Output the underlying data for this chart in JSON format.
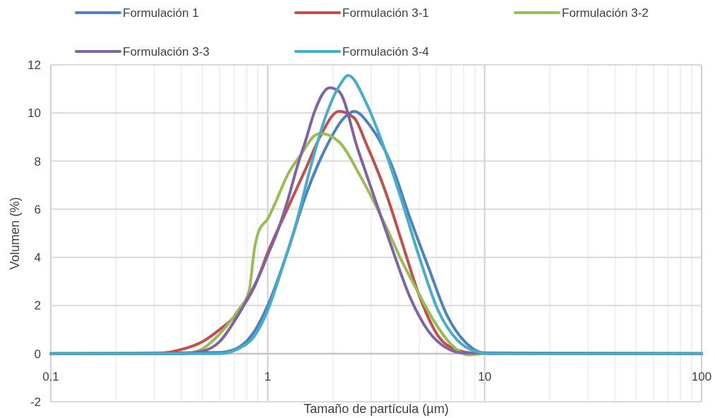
{
  "chart_data": {
    "type": "line",
    "xlabel": "Tamaño de partícula (µm)",
    "ylabel": "Volumen (%)",
    "log": "x",
    "xlim": [
      0.1,
      100
    ],
    "ylim": [
      -2,
      12
    ],
    "xticks": [
      0.1,
      {
        "value": 0.2,
        "label": null
      },
      {
        "value": 0.3,
        "label": null
      },
      {
        "value": 0.4,
        "label": null
      },
      {
        "value": 0.5,
        "label": null
      },
      {
        "value": 0.6,
        "label": null
      },
      {
        "value": 0.7,
        "label": null
      },
      {
        "value": 0.8,
        "label": null
      },
      {
        "value": 0.9,
        "label": null
      },
      1,
      {
        "value": 2,
        "label": null
      },
      {
        "value": 3,
        "label": null
      },
      {
        "value": 4,
        "label": null
      },
      {
        "value": 5,
        "label": null
      },
      {
        "value": 6,
        "label": null
      },
      {
        "value": 7,
        "label": null
      },
      {
        "value": 8,
        "label": null
      },
      {
        "value": 9,
        "label": null
      },
      10,
      {
        "value": 20,
        "label": null
      },
      {
        "value": 30,
        "label": null
      },
      {
        "value": 40,
        "label": null
      },
      {
        "value": 50,
        "label": null
      },
      {
        "value": 60,
        "label": null
      },
      {
        "value": 70,
        "label": null
      },
      {
        "value": 80,
        "label": null
      },
      {
        "value": 90,
        "label": null
      },
      100
    ],
    "yticks": [
      -2,
      0,
      2,
      4,
      6,
      8,
      10,
      12
    ],
    "grid": true,
    "legend": "top",
    "marker": "none",
    "line_style": "solid",
    "series": [
      {
        "name": "Formulación 1",
        "color": "#4f81bd",
        "x": [
          0.1,
          0.6,
          0.73,
          0.87,
          1,
          1.23,
          1.5,
          1.84,
          2.25,
          2.5,
          3.0,
          3.7,
          4.5,
          5.5,
          6.7,
          8.2,
          10,
          100
        ],
        "values": [
          0,
          0.05,
          0.25,
          0.94,
          2.0,
          4.2,
          6.6,
          8.5,
          9.8,
          10.07,
          9.4,
          7.9,
          5.7,
          3.6,
          1.6,
          0.45,
          0.03,
          0
        ]
      },
      {
        "name": "Formulación 3-1",
        "color": "#c0504d",
        "x": [
          0.1,
          0.3,
          0.39,
          0.5,
          0.6,
          0.73,
          0.87,
          1,
          1.23,
          1.5,
          1.74,
          2.13,
          2.5,
          2.85,
          3.5,
          4.2,
          5,
          6.1,
          7.5,
          9,
          100
        ],
        "values": [
          0,
          0,
          0.15,
          0.5,
          1.0,
          1.7,
          2.8,
          4.2,
          6.0,
          7.7,
          9.0,
          10.07,
          9.8,
          8.7,
          6.7,
          4.5,
          2.4,
          0.74,
          0.15,
          0.02,
          0
        ]
      },
      {
        "name": "Formulación 3-2",
        "color": "#9bbb59",
        "x": [
          0.1,
          0.4,
          0.45,
          0.5,
          0.56,
          0.64,
          0.73,
          0.82,
          0.87,
          0.91,
          1,
          1.1,
          1.23,
          1.43,
          1.65,
          1.75,
          2.13,
          2.7,
          3.5,
          4.1,
          4.9,
          5.8,
          6.9,
          8.4,
          10,
          100
        ],
        "values": [
          0,
          0,
          0.05,
          0.2,
          0.55,
          1.1,
          1.8,
          2.6,
          4.4,
          5.1,
          5.6,
          6.4,
          7.4,
          8.3,
          9.07,
          9.15,
          8.8,
          7.3,
          5.3,
          3.95,
          2.6,
          1.4,
          0.45,
          -0.05,
          0,
          0
        ]
      },
      {
        "name": "Formulación 3-3",
        "color": "#8064a2",
        "x": [
          0.1,
          0.4,
          0.5,
          0.6,
          0.73,
          0.82,
          0.93,
          1,
          1.1,
          1.23,
          1.36,
          1.5,
          1.65,
          1.93,
          2.13,
          2.6,
          3.1,
          3.7,
          4.5,
          5.5,
          6.6,
          8,
          100
        ],
        "values": [
          0,
          0,
          0.1,
          0.5,
          1.6,
          2.4,
          3.4,
          4.1,
          5.0,
          6.3,
          7.7,
          8.9,
          10.1,
          11.05,
          10.9,
          8.5,
          6.5,
          4.5,
          2.4,
          0.94,
          0.26,
          0.03,
          0
        ]
      },
      {
        "name": "Formulación 3-4",
        "color": "#4bacc6",
        "x": [
          0.1,
          0.6,
          0.73,
          0.87,
          1,
          1.17,
          1.36,
          1.57,
          1.84,
          2.13,
          2.35,
          2.85,
          3.3,
          4.1,
          5,
          6.1,
          7.5,
          9,
          10.5,
          100
        ],
        "values": [
          0,
          0,
          0.2,
          0.74,
          1.8,
          3.6,
          5.5,
          7.7,
          9.8,
          11.1,
          11.56,
          10.4,
          9.0,
          6.5,
          4.0,
          1.8,
          0.55,
          0.1,
          0,
          0
        ]
      }
    ]
  }
}
